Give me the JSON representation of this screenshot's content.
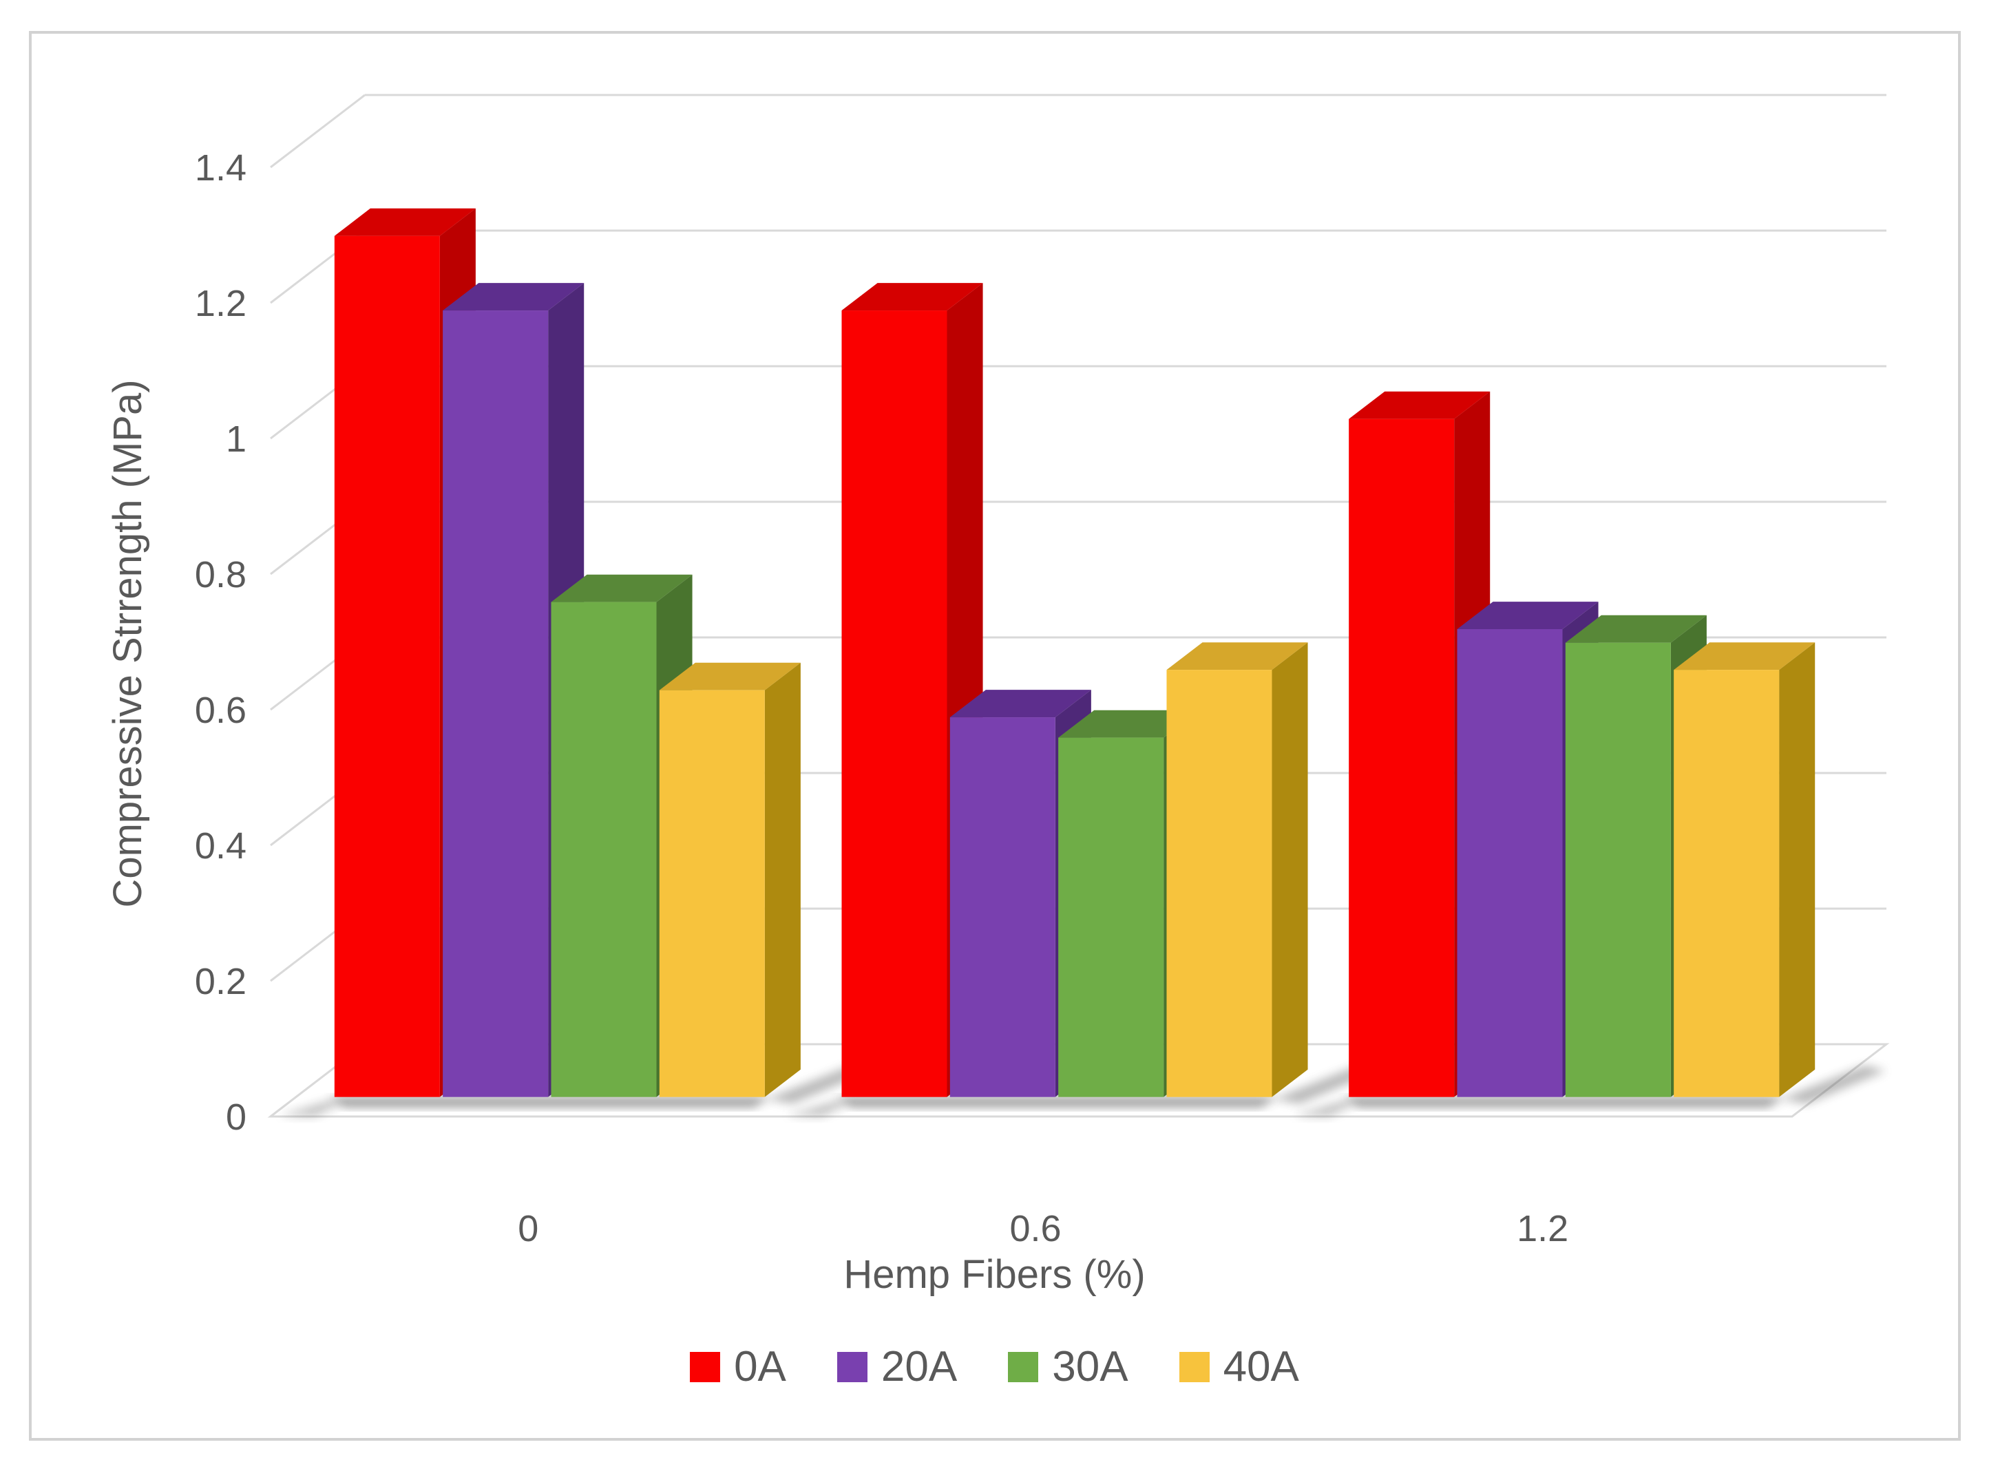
{
  "chart_data": {
    "type": "bar",
    "style": "3d-clustered-column",
    "title": "",
    "xlabel": "Hemp Fibers (%)",
    "ylabel": "Compressive Strrength (MPa)",
    "categories": [
      "0",
      "0.6",
      "1.2"
    ],
    "series": [
      {
        "name": "0A",
        "color": "#FA0000",
        "color_top": "#D50000",
        "color_side": "#BB0000",
        "values": [
          1.27,
          1.16,
          1.0
        ]
      },
      {
        "name": "20A",
        "color": "#7940AF",
        "color_top": "#5D2E8D",
        "color_side": "#4E2878",
        "values": [
          1.16,
          0.56,
          0.69
        ]
      },
      {
        "name": "30A",
        "color": "#6FAD47",
        "color_top": "#588838",
        "color_side": "#49742E",
        "values": [
          0.73,
          0.53,
          0.67
        ]
      },
      {
        "name": "40A",
        "color": "#F7C33D",
        "color_top": "#D6A72B",
        "color_side": "#AE8A0F",
        "values": [
          0.6,
          0.63,
          0.63
        ]
      }
    ],
    "ylim": [
      0,
      1.4
    ],
    "ytick_step": 0.2,
    "yticks": [
      "0",
      "0.2",
      "0.4",
      "0.6",
      "0.8",
      "1",
      "1.2",
      "1.4"
    ],
    "grid": true,
    "legend_position": "bottom"
  },
  "frame": {
    "border_color": "#D2D2D2",
    "background": "#FFFFFF"
  },
  "axis": {
    "text_color": "#595959",
    "grid_color": "#D9D9D9",
    "tick_font_px": 54,
    "title_font_px": 58,
    "legend_font_px": 62
  }
}
